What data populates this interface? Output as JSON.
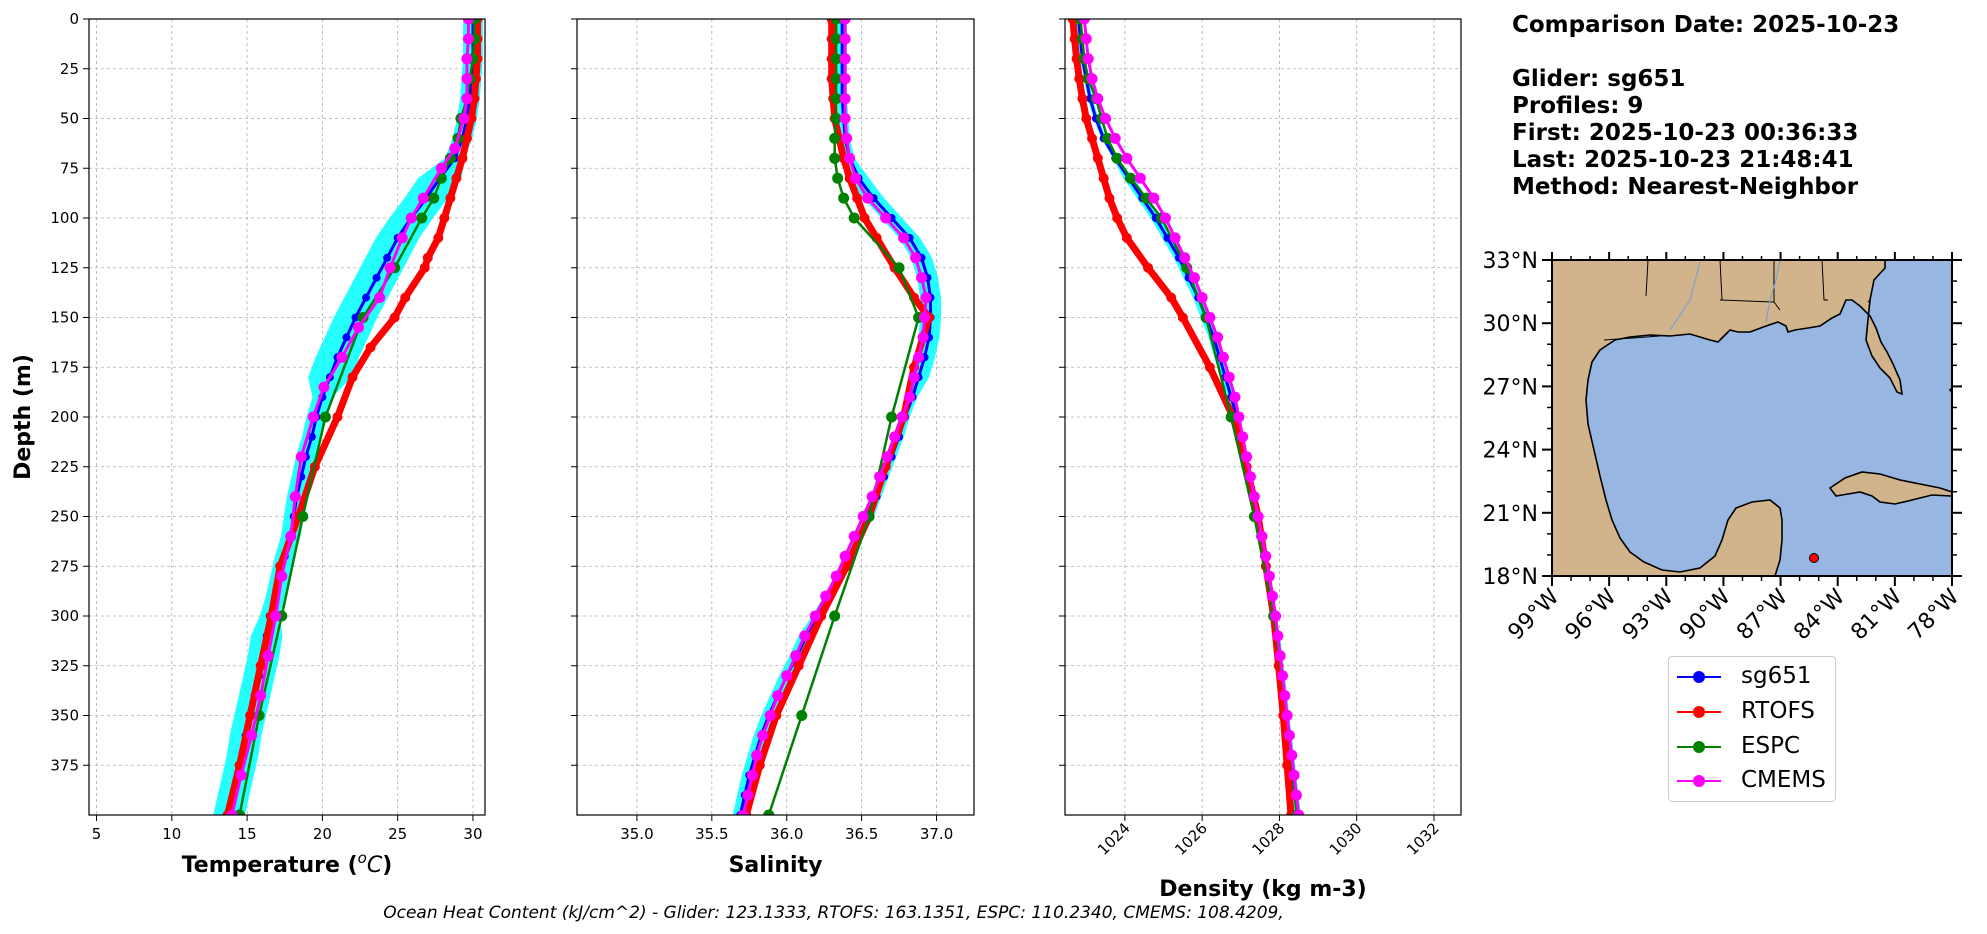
{
  "chart_data": [
    {
      "type": "line",
      "xlabel": "Temperature ($^{o}C$)",
      "ylabel": "Depth (m)",
      "xlim": [
        4.5,
        30.8
      ],
      "ylim": [
        400,
        0
      ],
      "xticks": [
        5,
        10,
        15,
        20,
        25,
        30
      ],
      "yticks": [
        0,
        25,
        50,
        75,
        100,
        125,
        150,
        175,
        200,
        225,
        250,
        275,
        300,
        325,
        350,
        375
      ],
      "grid": true,
      "series": [
        {
          "name": "sg651",
          "color": "#0000ff",
          "depth": [
            0,
            10,
            20,
            30,
            40,
            50,
            60,
            70,
            80,
            90,
            100,
            110,
            120,
            130,
            140,
            150,
            160,
            170,
            180,
            190,
            200,
            210,
            220,
            230,
            240,
            250,
            260,
            270,
            280,
            290,
            300,
            310,
            320,
            330,
            340,
            350,
            360,
            370,
            380,
            390,
            400
          ],
          "values": [
            30.0,
            30.0,
            30.0,
            29.9,
            29.8,
            29.6,
            29.3,
            28.8,
            27.8,
            26.9,
            25.9,
            25.0,
            24.3,
            23.6,
            22.9,
            22.2,
            21.6,
            21.0,
            20.5,
            20.0,
            19.6,
            19.3,
            18.9,
            18.6,
            18.3,
            18.1,
            17.9,
            17.5,
            17.2,
            16.9,
            16.5,
            16.3,
            16.1,
            15.8,
            15.5,
            15.2,
            14.9,
            14.7,
            14.4,
            14.1,
            13.8
          ]
        },
        {
          "name": "RTOFS",
          "color": "#ff0000",
          "depth": [
            0,
            10,
            20,
            30,
            40,
            50,
            60,
            70,
            80,
            90,
            100,
            110,
            120,
            125,
            140,
            150,
            165,
            180,
            200,
            225,
            250,
            275,
            300,
            325,
            350,
            375,
            400
          ],
          "values": [
            30.3,
            30.3,
            30.3,
            30.2,
            30.1,
            29.9,
            29.6,
            29.3,
            28.9,
            28.5,
            28.1,
            27.7,
            27.0,
            26.8,
            25.5,
            24.8,
            23.2,
            22.0,
            21.0,
            19.5,
            18.4,
            17.2,
            16.6,
            15.9,
            15.2,
            14.5,
            13.7
          ]
        },
        {
          "name": "ESPC",
          "color": "#008000",
          "depth": [
            0,
            10,
            20,
            30,
            40,
            50,
            60,
            70,
            80,
            90,
            100,
            125,
            150,
            200,
            250,
            300,
            350,
            400
          ],
          "values": [
            30.1,
            30.1,
            30.0,
            29.8,
            29.6,
            29.2,
            29.0,
            28.5,
            27.9,
            27.4,
            26.6,
            24.8,
            22.7,
            20.2,
            18.7,
            17.3,
            15.8,
            14.5
          ]
        },
        {
          "name": "CMEMS",
          "color": "#ff00ff",
          "depth": [
            0,
            10,
            20,
            30,
            40,
            50,
            65,
            75,
            90,
            100,
            110,
            125,
            140,
            155,
            170,
            185,
            200,
            220,
            240,
            260,
            280,
            300,
            320,
            340,
            360,
            380,
            400
          ],
          "values": [
            29.7,
            29.7,
            29.6,
            29.6,
            29.6,
            29.4,
            28.8,
            27.9,
            26.7,
            25.9,
            25.3,
            24.5,
            23.8,
            22.4,
            21.3,
            20.1,
            19.4,
            18.6,
            18.2,
            17.9,
            17.3,
            16.9,
            16.4,
            15.9,
            15.3,
            14.6,
            14.0
          ]
        }
      ]
    },
    {
      "type": "line",
      "xlabel": "Salinity",
      "xlim": [
        34.6,
        37.25
      ],
      "ylim": [
        400,
        0
      ],
      "xticks": [
        35.0,
        35.5,
        36.0,
        36.5,
        37.0
      ],
      "xtick_labels": [
        "35.0",
        "35.5",
        "36.0",
        "36.5",
        "37.0"
      ],
      "grid": true,
      "series": [
        {
          "name": "sg651",
          "color": "#0000ff",
          "depth": [
            0,
            10,
            20,
            30,
            40,
            50,
            60,
            70,
            80,
            90,
            100,
            110,
            120,
            130,
            140,
            150,
            160,
            170,
            180,
            190,
            200,
            210,
            220,
            230,
            240,
            250,
            260,
            270,
            280,
            290,
            300,
            310,
            320,
            330,
            340,
            350,
            360,
            370,
            380,
            390,
            400
          ],
          "values": [
            36.37,
            36.37,
            36.37,
            36.37,
            36.37,
            36.38,
            36.39,
            36.42,
            36.48,
            36.58,
            36.7,
            36.82,
            36.9,
            36.94,
            36.96,
            36.96,
            36.95,
            36.92,
            36.88,
            36.84,
            36.79,
            36.75,
            36.7,
            36.65,
            36.6,
            36.55,
            36.48,
            36.42,
            36.36,
            36.28,
            36.2,
            36.13,
            36.07,
            36.0,
            35.94,
            35.88,
            35.83,
            35.79,
            35.75,
            35.72,
            35.69
          ]
        },
        {
          "name": "RTOFS",
          "color": "#ff0000",
          "depth": [
            0,
            10,
            20,
            30,
            40,
            50,
            60,
            70,
            80,
            90,
            100,
            110,
            125,
            140,
            150,
            175,
            200,
            225,
            250,
            275,
            300,
            325,
            350,
            375,
            400
          ],
          "values": [
            36.3,
            36.3,
            36.3,
            36.3,
            36.31,
            36.32,
            36.35,
            36.38,
            36.42,
            36.47,
            36.52,
            36.6,
            36.72,
            36.85,
            36.95,
            36.85,
            36.78,
            36.66,
            36.55,
            36.4,
            36.23,
            36.08,
            35.93,
            35.82,
            35.73
          ]
        },
        {
          "name": "ESPC",
          "color": "#008000",
          "depth": [
            0,
            10,
            20,
            30,
            40,
            50,
            60,
            70,
            80,
            90,
            100,
            125,
            150,
            200,
            250,
            300,
            350,
            400
          ],
          "values": [
            36.33,
            36.33,
            36.33,
            36.33,
            36.33,
            36.33,
            36.32,
            36.32,
            36.34,
            36.38,
            36.45,
            36.75,
            36.88,
            36.7,
            36.55,
            36.32,
            36.1,
            35.88
          ]
        },
        {
          "name": "CMEMS",
          "color": "#ff00ff",
          "depth": [
            0,
            10,
            20,
            30,
            40,
            50,
            60,
            70,
            80,
            90,
            100,
            110,
            120,
            130,
            140,
            150,
            160,
            170,
            180,
            190,
            200,
            210,
            220,
            230,
            240,
            250,
            260,
            270,
            280,
            290,
            300,
            310,
            320,
            330,
            340,
            350,
            360,
            370,
            380,
            390,
            400
          ],
          "values": [
            36.39,
            36.39,
            36.39,
            36.39,
            36.39,
            36.39,
            36.4,
            36.42,
            36.46,
            36.54,
            36.66,
            36.78,
            36.86,
            36.9,
            36.93,
            36.92,
            36.91,
            36.88,
            36.85,
            36.82,
            36.77,
            36.72,
            36.67,
            36.62,
            36.57,
            36.51,
            36.45,
            36.39,
            36.33,
            36.26,
            36.19,
            36.12,
            36.06,
            36.0,
            35.94,
            35.89,
            35.84,
            35.8,
            35.77,
            35.74,
            35.71
          ]
        }
      ]
    },
    {
      "type": "line",
      "xlabel": "Density (kg m-3)",
      "xlim": [
        1022.45,
        1032.7
      ],
      "ylim": [
        400,
        0
      ],
      "xticks": [
        1024,
        1026,
        1028,
        1030,
        1032
      ],
      "grid": true,
      "series": [
        {
          "name": "sg651",
          "color": "#0000ff",
          "depth": [
            0,
            10,
            20,
            30,
            40,
            50,
            60,
            70,
            80,
            90,
            100,
            110,
            120,
            130,
            140,
            150,
            160,
            170,
            180,
            190,
            200,
            210,
            220,
            230,
            240,
            250,
            260,
            270,
            280,
            290,
            300,
            310,
            320,
            330,
            340,
            350,
            360,
            370,
            380,
            390,
            400
          ],
          "values": [
            1022.8,
            1022.85,
            1022.9,
            1023.0,
            1023.1,
            1023.25,
            1023.45,
            1023.75,
            1024.1,
            1024.45,
            1024.8,
            1025.1,
            1025.4,
            1025.65,
            1025.9,
            1026.1,
            1026.3,
            1026.45,
            1026.6,
            1026.75,
            1026.9,
            1027.0,
            1027.1,
            1027.2,
            1027.3,
            1027.4,
            1027.5,
            1027.6,
            1027.7,
            1027.78,
            1027.86,
            1027.92,
            1027.98,
            1028.04,
            1028.1,
            1028.16,
            1028.22,
            1028.28,
            1028.34,
            1028.4,
            1028.46
          ]
        },
        {
          "name": "RTOFS",
          "color": "#ff0000",
          "depth": [
            0,
            10,
            20,
            30,
            40,
            50,
            60,
            70,
            80,
            90,
            100,
            110,
            125,
            140,
            150,
            175,
            200,
            225,
            250,
            275,
            300,
            325,
            350,
            375,
            400
          ],
          "values": [
            1022.65,
            1022.7,
            1022.75,
            1022.82,
            1022.9,
            1023.0,
            1023.15,
            1023.3,
            1023.45,
            1023.6,
            1023.8,
            1024.05,
            1024.6,
            1025.2,
            1025.5,
            1026.2,
            1026.8,
            1027.15,
            1027.45,
            1027.65,
            1027.85,
            1027.98,
            1028.1,
            1028.2,
            1028.3
          ]
        },
        {
          "name": "ESPC",
          "color": "#008000",
          "depth": [
            0,
            10,
            20,
            30,
            40,
            50,
            60,
            70,
            80,
            90,
            100,
            125,
            150,
            200,
            250,
            300,
            350,
            400
          ],
          "values": [
            1022.85,
            1022.9,
            1022.95,
            1023.05,
            1023.25,
            1023.4,
            1023.55,
            1023.8,
            1024.15,
            1024.55,
            1024.95,
            1025.6,
            1026.1,
            1026.75,
            1027.35,
            1027.85,
            1028.2,
            1028.45
          ]
        },
        {
          "name": "CMEMS",
          "color": "#ff00ff",
          "depth": [
            0,
            10,
            20,
            30,
            40,
            50,
            60,
            70,
            80,
            90,
            100,
            110,
            120,
            130,
            140,
            150,
            160,
            170,
            180,
            190,
            200,
            210,
            220,
            230,
            240,
            250,
            260,
            270,
            280,
            290,
            300,
            310,
            320,
            330,
            340,
            350,
            360,
            370,
            380,
            390,
            400
          ],
          "values": [
            1022.95,
            1023.0,
            1023.05,
            1023.15,
            1023.3,
            1023.5,
            1023.75,
            1024.05,
            1024.4,
            1024.75,
            1025.05,
            1025.3,
            1025.55,
            1025.8,
            1026.0,
            1026.2,
            1026.4,
            1026.55,
            1026.7,
            1026.85,
            1026.95,
            1027.05,
            1027.15,
            1027.25,
            1027.35,
            1027.45,
            1027.55,
            1027.65,
            1027.74,
            1027.82,
            1027.9,
            1027.96,
            1028.02,
            1028.08,
            1028.14,
            1028.2,
            1028.26,
            1028.32,
            1028.38,
            1028.44,
            1028.5
          ]
        }
      ]
    }
  ],
  "info": {
    "comparison_date": "Comparison Date: 2025-10-23",
    "glider": "Glider: sg651",
    "profiles": "Profiles: 9",
    "first": "First: 2025-10-23 00:36:33",
    "last": "Last: 2025-10-23 21:48:41",
    "method": "Method: Nearest-Neighbor"
  },
  "map": {
    "lat_labels": [
      "33°N",
      "30°N",
      "27°N",
      "24°N",
      "21°N",
      "18°N"
    ],
    "lon_labels": [
      "99°W",
      "96°W",
      "93°W",
      "90°W",
      "87°W",
      "84°W",
      "81°W",
      "78°W"
    ],
    "land_color": "#d2b48c",
    "ocean_color": "#97b6e1",
    "glider_position_lon": -85.9,
    "glider_position_lat": 19.0
  },
  "legend": {
    "items": [
      {
        "label": "sg651",
        "color": "#0000ff"
      },
      {
        "label": "RTOFS",
        "color": "#ff0000"
      },
      {
        "label": "ESPC",
        "color": "#008000"
      },
      {
        "label": "CMEMS",
        "color": "#ff00ff"
      }
    ]
  },
  "footer": "Ocean Heat Content (kJ/cm^2) - Glider: 123.1333,  RTOFS: 163.1351,  ESPC: 110.2340,  CMEMS: 108.4209,",
  "colors": {
    "envelope": "#00ffff",
    "grid": "#b0b0b0"
  }
}
